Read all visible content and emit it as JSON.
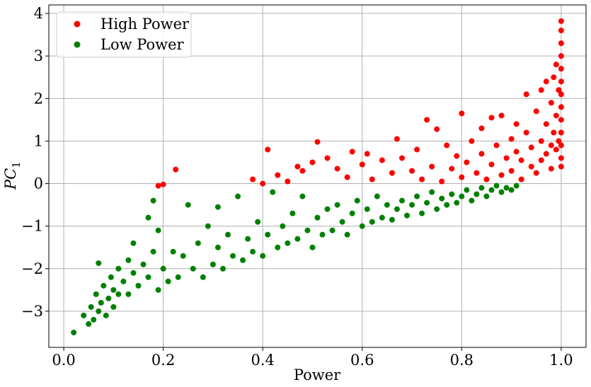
{
  "chart_data": {
    "type": "scatter",
    "title": "",
    "xlabel": "Power",
    "ylabel_main": "PC",
    "ylabel_sub": "1",
    "xlim": [
      -0.03,
      1.05
    ],
    "ylim": [
      -3.85,
      4.2
    ],
    "x_ticks": [
      0.0,
      0.2,
      0.4,
      0.6,
      0.8,
      1.0
    ],
    "x_tick_labels": [
      "0.0",
      "0.2",
      "0.4",
      "0.6",
      "0.8",
      "1.0"
    ],
    "y_ticks": [
      -3,
      -2,
      -1,
      0,
      1,
      2,
      3,
      4
    ],
    "y_tick_labels": [
      "−3",
      "−2",
      "−1",
      "0",
      "1",
      "2",
      "3",
      "4"
    ],
    "grid": true,
    "legend_position": "top-left",
    "series": [
      {
        "name": "High Power",
        "color": "#ff0000",
        "points": [
          [
            0.19,
            -0.05
          ],
          [
            0.2,
            -0.02
          ],
          [
            0.225,
            0.33
          ],
          [
            0.38,
            0.1
          ],
          [
            0.4,
            0.0
          ],
          [
            0.41,
            0.8
          ],
          [
            0.43,
            0.2
          ],
          [
            0.45,
            0.05
          ],
          [
            0.47,
            0.4
          ],
          [
            0.48,
            0.3
          ],
          [
            0.5,
            0.5
          ],
          [
            0.51,
            0.98
          ],
          [
            0.53,
            0.6
          ],
          [
            0.55,
            0.35
          ],
          [
            0.57,
            0.15
          ],
          [
            0.58,
            0.75
          ],
          [
            0.6,
            0.45
          ],
          [
            0.61,
            0.7
          ],
          [
            0.62,
            0.1
          ],
          [
            0.64,
            0.55
          ],
          [
            0.66,
            0.25
          ],
          [
            0.67,
            1.05
          ],
          [
            0.68,
            0.6
          ],
          [
            0.7,
            0.3
          ],
          [
            0.71,
            0.8
          ],
          [
            0.72,
            0.1
          ],
          [
            0.73,
            1.5
          ],
          [
            0.74,
            0.4
          ],
          [
            0.75,
            1.28
          ],
          [
            0.76,
            0.05
          ],
          [
            0.77,
            0.9
          ],
          [
            0.78,
            0.35
          ],
          [
            0.79,
            0.65
          ],
          [
            0.8,
            1.65
          ],
          [
            0.8,
            0.15
          ],
          [
            0.81,
            0.5
          ],
          [
            0.82,
            1.0
          ],
          [
            0.83,
            0.25
          ],
          [
            0.84,
            1.3
          ],
          [
            0.84,
            0.7
          ],
          [
            0.85,
            0.1
          ],
          [
            0.86,
            1.55
          ],
          [
            0.86,
            0.45
          ],
          [
            0.87,
            0.9
          ],
          [
            0.88,
            0.2
          ],
          [
            0.88,
            1.6
          ],
          [
            0.89,
            0.6
          ],
          [
            0.9,
            1.05
          ],
          [
            0.9,
            0.3
          ],
          [
            0.91,
            1.4
          ],
          [
            0.91,
            0.75
          ],
          [
            0.92,
            0.1
          ],
          [
            0.92,
            0.55
          ],
          [
            0.93,
            2.1
          ],
          [
            0.93,
            1.2
          ],
          [
            0.94,
            0.4
          ],
          [
            0.94,
            0.85
          ],
          [
            0.95,
            1.7
          ],
          [
            0.95,
            0.25
          ],
          [
            0.96,
            2.2
          ],
          [
            0.96,
            1.0
          ],
          [
            0.96,
            0.55
          ],
          [
            0.97,
            2.4
          ],
          [
            0.97,
            1.4
          ],
          [
            0.97,
            0.7
          ],
          [
            0.98,
            1.9
          ],
          [
            0.98,
            0.9
          ],
          [
            0.98,
            0.35
          ],
          [
            0.985,
            2.5
          ],
          [
            0.985,
            1.2
          ],
          [
            0.99,
            2.8
          ],
          [
            0.99,
            1.6
          ],
          [
            0.99,
            0.8
          ],
          [
            0.995,
            2.2
          ],
          [
            0.995,
            1.0
          ],
          [
            1.0,
            3.82
          ],
          [
            1.0,
            3.6
          ],
          [
            1.0,
            3.3
          ],
          [
            1.0,
            3.0
          ],
          [
            1.0,
            2.7
          ],
          [
            1.0,
            2.4
          ],
          [
            1.0,
            2.1
          ],
          [
            1.0,
            1.8
          ],
          [
            1.0,
            1.5
          ],
          [
            1.0,
            1.2
          ],
          [
            1.0,
            0.9
          ],
          [
            1.0,
            0.6
          ],
          [
            1.0,
            0.4
          ]
        ]
      },
      {
        "name": "Low Power",
        "color": "#008000",
        "points": [
          [
            0.02,
            -3.5
          ],
          [
            0.04,
            -3.1
          ],
          [
            0.05,
            -3.3
          ],
          [
            0.055,
            -2.9
          ],
          [
            0.06,
            -3.2
          ],
          [
            0.065,
            -2.6
          ],
          [
            0.07,
            -3.0
          ],
          [
            0.07,
            -1.87
          ],
          [
            0.075,
            -2.8
          ],
          [
            0.08,
            -2.4
          ],
          [
            0.085,
            -3.1
          ],
          [
            0.09,
            -2.7
          ],
          [
            0.095,
            -2.2
          ],
          [
            0.1,
            -2.9
          ],
          [
            0.1,
            -2.5
          ],
          [
            0.11,
            -2.0
          ],
          [
            0.11,
            -2.6
          ],
          [
            0.12,
            -2.3
          ],
          [
            0.13,
            -1.8
          ],
          [
            0.13,
            -2.6
          ],
          [
            0.14,
            -2.1
          ],
          [
            0.14,
            -1.4
          ],
          [
            0.15,
            -2.4
          ],
          [
            0.16,
            -1.9
          ],
          [
            0.17,
            -0.8
          ],
          [
            0.17,
            -2.2
          ],
          [
            0.18,
            -1.6
          ],
          [
            0.18,
            -0.4
          ],
          [
            0.19,
            -2.5
          ],
          [
            0.19,
            -1.1
          ],
          [
            0.2,
            -2.0
          ],
          [
            0.21,
            -2.3
          ],
          [
            0.22,
            -1.6
          ],
          [
            0.23,
            -2.2
          ],
          [
            0.24,
            -1.7
          ],
          [
            0.25,
            -0.5
          ],
          [
            0.26,
            -2.0
          ],
          [
            0.27,
            -1.4
          ],
          [
            0.28,
            -2.2
          ],
          [
            0.29,
            -1.0
          ],
          [
            0.3,
            -1.9
          ],
          [
            0.31,
            -1.5
          ],
          [
            0.31,
            -0.55
          ],
          [
            0.32,
            -2.0
          ],
          [
            0.33,
            -1.2
          ],
          [
            0.34,
            -1.7
          ],
          [
            0.35,
            -0.3
          ],
          [
            0.36,
            -1.8
          ],
          [
            0.37,
            -1.3
          ],
          [
            0.38,
            -1.6
          ],
          [
            0.39,
            -0.9
          ],
          [
            0.4,
            -1.7
          ],
          [
            0.41,
            -1.2
          ],
          [
            0.42,
            -0.2
          ],
          [
            0.43,
            -1.5
          ],
          [
            0.44,
            -1.0
          ],
          [
            0.45,
            -1.4
          ],
          [
            0.46,
            -0.7
          ],
          [
            0.47,
            -1.3
          ],
          [
            0.48,
            -0.3
          ],
          [
            0.49,
            -1.1
          ],
          [
            0.5,
            -1.5
          ],
          [
            0.51,
            -0.8
          ],
          [
            0.52,
            -1.2
          ],
          [
            0.53,
            -0.6
          ],
          [
            0.54,
            -1.1
          ],
          [
            0.55,
            -0.5
          ],
          [
            0.56,
            -0.9
          ],
          [
            0.57,
            -1.2
          ],
          [
            0.58,
            -0.7
          ],
          [
            0.59,
            -0.4
          ],
          [
            0.6,
            -1.0
          ],
          [
            0.61,
            -0.6
          ],
          [
            0.62,
            -0.9
          ],
          [
            0.63,
            -0.3
          ],
          [
            0.64,
            -0.8
          ],
          [
            0.65,
            -0.5
          ],
          [
            0.66,
            -0.85
          ],
          [
            0.67,
            -0.6
          ],
          [
            0.68,
            -0.4
          ],
          [
            0.69,
            -0.75
          ],
          [
            0.7,
            -0.5
          ],
          [
            0.71,
            -0.3
          ],
          [
            0.72,
            -0.7
          ],
          [
            0.73,
            -0.45
          ],
          [
            0.74,
            -0.2
          ],
          [
            0.75,
            -0.6
          ],
          [
            0.76,
            -0.35
          ],
          [
            0.77,
            -0.5
          ],
          [
            0.78,
            -0.25
          ],
          [
            0.79,
            -0.45
          ],
          [
            0.8,
            -0.3
          ],
          [
            0.81,
            -0.15
          ],
          [
            0.82,
            -0.4
          ],
          [
            0.83,
            -0.25
          ],
          [
            0.84,
            -0.1
          ],
          [
            0.85,
            -0.3
          ],
          [
            0.86,
            -0.15
          ],
          [
            0.87,
            -0.05
          ],
          [
            0.88,
            -0.2
          ],
          [
            0.89,
            -0.1
          ],
          [
            0.9,
            -0.15
          ],
          [
            0.91,
            -0.05
          ]
        ]
      }
    ]
  }
}
